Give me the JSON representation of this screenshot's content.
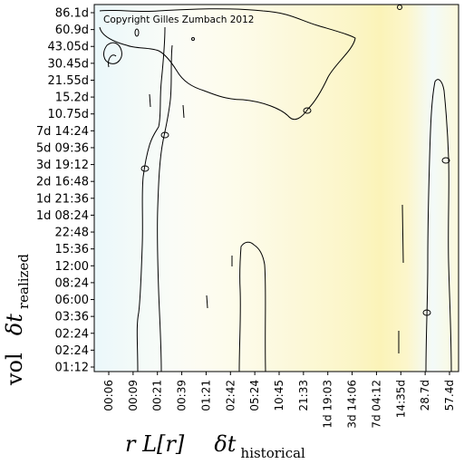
{
  "chart_data": {
    "type": "heatmap",
    "copyright": "Copyright Gilles Zumbach 2012",
    "y_ticks": [
      "86.1d",
      "60.9d",
      "43.05d",
      "30.45d",
      "21.55d",
      "15.2d",
      "10.75d",
      "7d 14:24",
      "5d 09:36",
      "3d 19:12",
      "2d 16:48",
      "1d 21:36",
      "1d 08:24",
      "22:48",
      "15:36",
      "12:00",
      "08:24",
      "06:00",
      "03:36",
      "02:24",
      "02:24",
      "01:12"
    ],
    "x_ticks": [
      "00:06",
      "00:09",
      "00:21",
      "00:39",
      "01:21",
      "02:42",
      "05:24",
      "10:45",
      "21:33",
      "1d 19:03",
      "3d 14:06",
      "7d 04:12",
      "14:35d",
      "28.7d",
      "57.4d"
    ],
    "ylabel": {
      "prefix": "vol",
      "symbol": "δt",
      "subscript": "realized"
    },
    "xlabel": {
      "prefix": "r L[r]",
      "symbol": "δt",
      "subscript": "historical"
    },
    "colors": {
      "low": "#e6f6fc",
      "mid": "#fdfdf6",
      "high": "#fbf3b8"
    },
    "column_intensity": [
      -0.35,
      -0.25,
      -0.15,
      -0.05,
      0.05,
      0.12,
      0.2,
      0.3,
      0.4,
      0.5,
      0.62,
      0.8,
      0.55,
      -0.2,
      0.35
    ]
  }
}
